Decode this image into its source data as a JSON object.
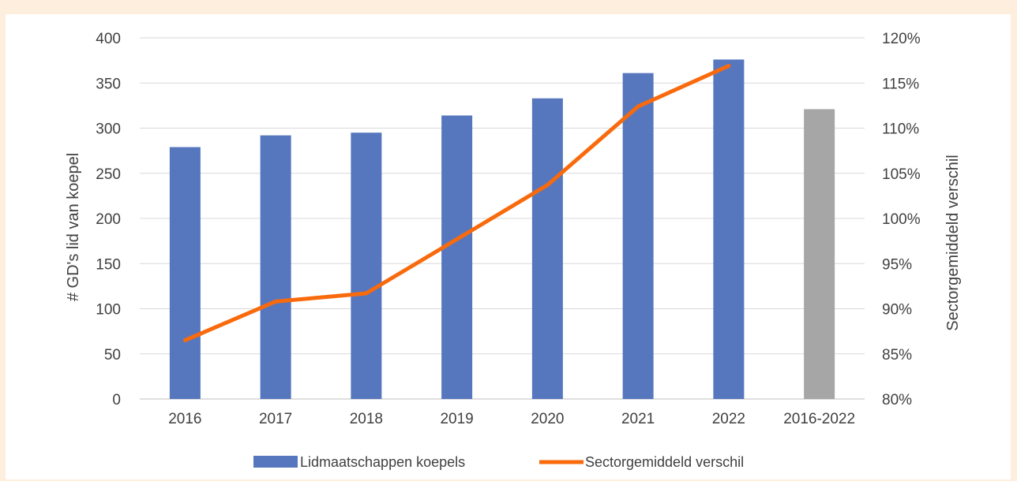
{
  "chart_data": {
    "type": "bar",
    "categories": [
      "2016",
      "2017",
      "2018",
      "2019",
      "2020",
      "2021",
      "2022",
      "2016-2022"
    ],
    "series": [
      {
        "name": "Lidmaatschappen koepels",
        "type": "bar",
        "axis": "left",
        "values": [
          279,
          292,
          295,
          314,
          333,
          361,
          376,
          321
        ],
        "colors": [
          "#5677be",
          "#5677be",
          "#5677be",
          "#5677be",
          "#5677be",
          "#5677be",
          "#5677be",
          "#a6a6a6"
        ]
      },
      {
        "name": "Sectorgemiddeld verschil",
        "type": "line",
        "axis": "right",
        "values": [
          86.5,
          90.8,
          91.7,
          97.7,
          103.7,
          112.4,
          116.9,
          null
        ],
        "color": "#f96a0d"
      }
    ],
    "ylabel": "# GD's lid van koepel",
    "ylabel_right": "Sectorgemiddeld verschil",
    "ylim": [
      0,
      400
    ],
    "ylim_right": [
      80,
      120
    ],
    "y_ticks": [
      "0",
      "50",
      "100",
      "150",
      "200",
      "250",
      "300",
      "350",
      "400"
    ],
    "y_right_ticks": [
      "80%",
      "85%",
      "90%",
      "95%",
      "100%",
      "105%",
      "110%",
      "115%",
      "120%"
    ],
    "grid": true,
    "legend_position": "bottom",
    "legend": [
      "Lidmaatschappen koepels",
      "Sectorgemiddeld verschil"
    ]
  }
}
